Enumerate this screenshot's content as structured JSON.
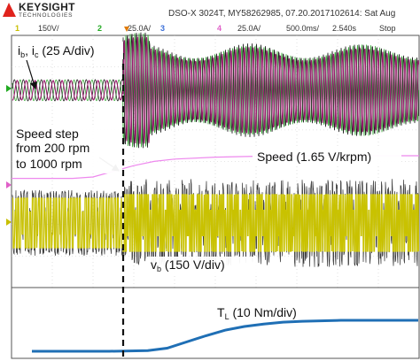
{
  "brand": {
    "name": "KEYSIGHT",
    "sub": "TECHNOLOGIES"
  },
  "header": {
    "model_info": "DSO-X 3024T, MY58262985, 07.20.2017102614: Sat Aug",
    "timebase": "500.0ms/",
    "delay": "2.540s",
    "run_state": "Stop",
    "trigger_marker": "T"
  },
  "channels": [
    {
      "num": "1",
      "scale": "150V/",
      "color": "#d4cc00"
    },
    {
      "num": "2",
      "scale": "25.0A/",
      "color": "#22aa22"
    },
    {
      "num": "3",
      "scale": "",
      "color": "#3a6fd8"
    },
    {
      "num": "4",
      "scale": "25.0A/",
      "color": "#e060c8"
    }
  ],
  "annotations": {
    "currents_a": "i",
    "currents_a_sub": "b",
    "currents_sep": ", i",
    "currents_b_sub": "c",
    "currents_scale": " (25 A/div)",
    "step_line1": "Speed step",
    "step_line2": "from 200 rpm",
    "step_line3": "to 1000 rpm",
    "speed_label": "Speed (1.65 V/krpm)",
    "voltage_main": "v",
    "voltage_sub": "b",
    "voltage_scale": " (150 V/div)",
    "torque_main": "T",
    "torque_sub": "L",
    "torque_scale": " (10 Nm/div)"
  },
  "chart_data": {
    "type": "line",
    "series": [
      {
        "name": "Speed (1.65 V/krpm)",
        "color": "#ee88ee",
        "x": [
          0,
          1.5,
          2.0,
          2.5,
          3.0,
          3.5,
          4.0,
          5.0,
          6.0,
          7.0,
          8.0,
          9.0,
          10.0
        ],
        "y": [
          0.2,
          0.2,
          0.25,
          0.45,
          0.65,
          0.8,
          0.88,
          0.95,
          0.98,
          1.0,
          1.0,
          1.0,
          1.0
        ]
      },
      {
        "name": "T (10 Nm/div)",
        "color": "#1f6fb5",
        "x": [
          0,
          1,
          2,
          3,
          3.5,
          4,
          4.5,
          5,
          5.5,
          6,
          6.5,
          7,
          8,
          9,
          10
        ],
        "y": [
          0.0,
          0.0,
          0.0,
          0.02,
          0.1,
          0.3,
          0.5,
          0.68,
          0.8,
          0.88,
          0.94,
          0.97,
          1.0,
          1.0,
          1.0
        ]
      }
    ]
  }
}
